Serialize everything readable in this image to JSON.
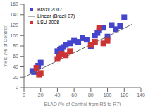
{
  "chart_data": {
    "type": "scatter",
    "xlabel": "ELAD (% of Control from R5 to R7)",
    "ylabel": "Yield (% of Control)",
    "series": [
      {
        "name": "Brazil 2007",
        "type": "scatter",
        "marker": "square",
        "color": "#4444cc",
        "x": [
          10,
          12,
          15,
          17,
          20,
          40,
          43,
          45,
          47,
          50,
          55,
          60,
          65,
          70,
          75,
          80,
          85,
          88,
          90,
          95,
          100,
          105,
          110,
          115,
          120
        ],
        "values": [
          32,
          30,
          38,
          42,
          48,
          70,
          72,
          75,
          78,
          82,
          85,
          90,
          88,
          95,
          92,
          80,
          100,
          105,
          110,
          115,
          98,
          120,
          112,
          118,
          135
        ]
      },
      {
        "name": "Linear (Brazil 07)",
        "type": "line",
        "color": "#666666",
        "x": [
          0,
          130
        ],
        "values": [
          20,
          122
        ]
      },
      {
        "name": "LSU 2008",
        "type": "scatter",
        "marker": "square",
        "color": "#cc3333",
        "x": [
          15,
          18,
          20,
          40,
          42,
          45,
          50,
          55,
          80,
          85,
          90,
          95,
          100
        ],
        "values": [
          38,
          25,
          28,
          55,
          60,
          65,
          62,
          70,
          82,
          88,
          115,
          85,
          90
        ]
      }
    ],
    "xlim": [
      0,
      140
    ],
    "ylim": [
      0,
      160
    ],
    "xticks": [
      0,
      20,
      40,
      60,
      80,
      100,
      120,
      140
    ],
    "yticks": [
      0,
      20,
      40,
      60,
      80,
      100,
      120,
      140,
      160
    ],
    "grid": false,
    "legend": "upper left"
  }
}
